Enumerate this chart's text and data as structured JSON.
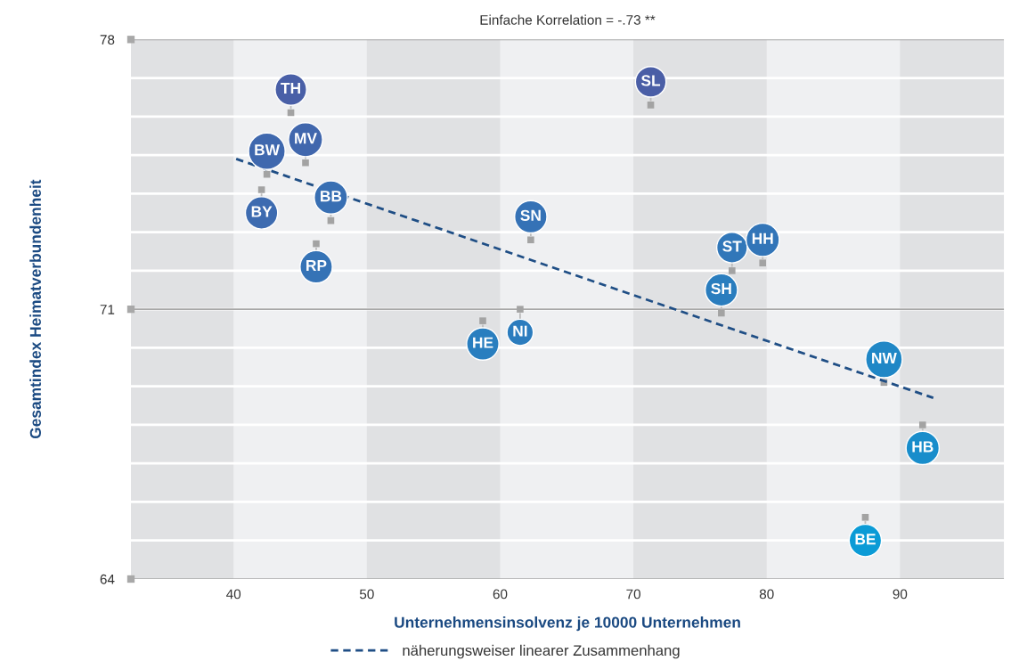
{
  "chart_data": {
    "type": "scatter",
    "title": "Einfache Korrelation = -.73 **",
    "xlabel": "Unternehmensinsolvenz je 10000 Unternehmen",
    "ylabel": "Gesamtindex Heimatverbundenheit",
    "xlim": [
      32.3,
      97.8
    ],
    "ylim": [
      64,
      78
    ],
    "xticks": [
      40,
      50,
      60,
      70,
      80,
      90
    ],
    "yticks": [
      64,
      {
        "value": 65,
        "label": null
      },
      {
        "value": 66,
        "label": null
      },
      {
        "value": 67,
        "label": null
      },
      {
        "value": 68,
        "label": null
      },
      {
        "value": 69,
        "label": null
      },
      {
        "value": 70,
        "label": null
      },
      71,
      {
        "value": 72,
        "label": null
      },
      {
        "value": 73,
        "label": null
      },
      {
        "value": 74,
        "label": null
      },
      {
        "value": 75,
        "label": null
      },
      {
        "value": 76,
        "label": null
      },
      {
        "value": 77,
        "label": null
      },
      78
    ],
    "grid": "y",
    "legend": "bottom",
    "ref_lines": [
      {
        "axis": "y",
        "value": 71,
        "color": "#a8a8a8"
      }
    ],
    "series": [
      {
        "type": "scatter",
        "color": "#a3a3a3",
        "marker": "square",
        "x": [
          44.3,
          45.4,
          42.5,
          42.1,
          47.3,
          46.2,
          62.3,
          71.3,
          77.4,
          79.7,
          76.6,
          58.7,
          61.5,
          88.8,
          91.7,
          87.4
        ],
        "values": [
          76.1,
          74.8,
          74.5,
          74.1,
          73.3,
          72.7,
          72.8,
          76.3,
          72.0,
          72.2,
          70.9,
          70.7,
          71.0,
          69.1,
          68.0,
          65.6
        ]
      },
      {
        "type": "line",
        "name": "näherungsweiser linearer Zusammenhang",
        "color": "#1f4e85",
        "line_style": "dashed",
        "marker": "none",
        "x": [
          40.2,
          92.5
        ],
        "values": [
          74.9,
          68.7
        ]
      }
    ],
    "annotations": [
      {
        "text": "TH",
        "x": 44.3,
        "y": 76.1
      },
      {
        "text": "MV",
        "x": 45.4,
        "y": 74.8
      },
      {
        "text": "BW",
        "x": 42.5,
        "y": 74.5
      },
      {
        "text": "BY",
        "x": 42.1,
        "y": 74.1
      },
      {
        "text": "BB",
        "x": 47.3,
        "y": 73.3
      },
      {
        "text": "RP",
        "x": 46.2,
        "y": 72.7
      },
      {
        "text": "SN",
        "x": 62.3,
        "y": 72.8
      },
      {
        "text": "SL",
        "x": 71.3,
        "y": 76.3
      },
      {
        "text": "ST",
        "x": 77.4,
        "y": 72.0
      },
      {
        "text": "HH",
        "x": 79.7,
        "y": 72.2
      },
      {
        "text": "SH",
        "x": 76.6,
        "y": 70.9
      },
      {
        "text": "HE",
        "x": 58.7,
        "y": 70.7
      },
      {
        "text": "NI",
        "x": 61.5,
        "y": 71.0
      },
      {
        "text": "NW",
        "x": 88.8,
        "y": 69.1
      },
      {
        "text": "HB",
        "x": 91.7,
        "y": 68.0
      },
      {
        "text": "BE",
        "x": 87.4,
        "y": 65.6
      }
    ]
  }
}
